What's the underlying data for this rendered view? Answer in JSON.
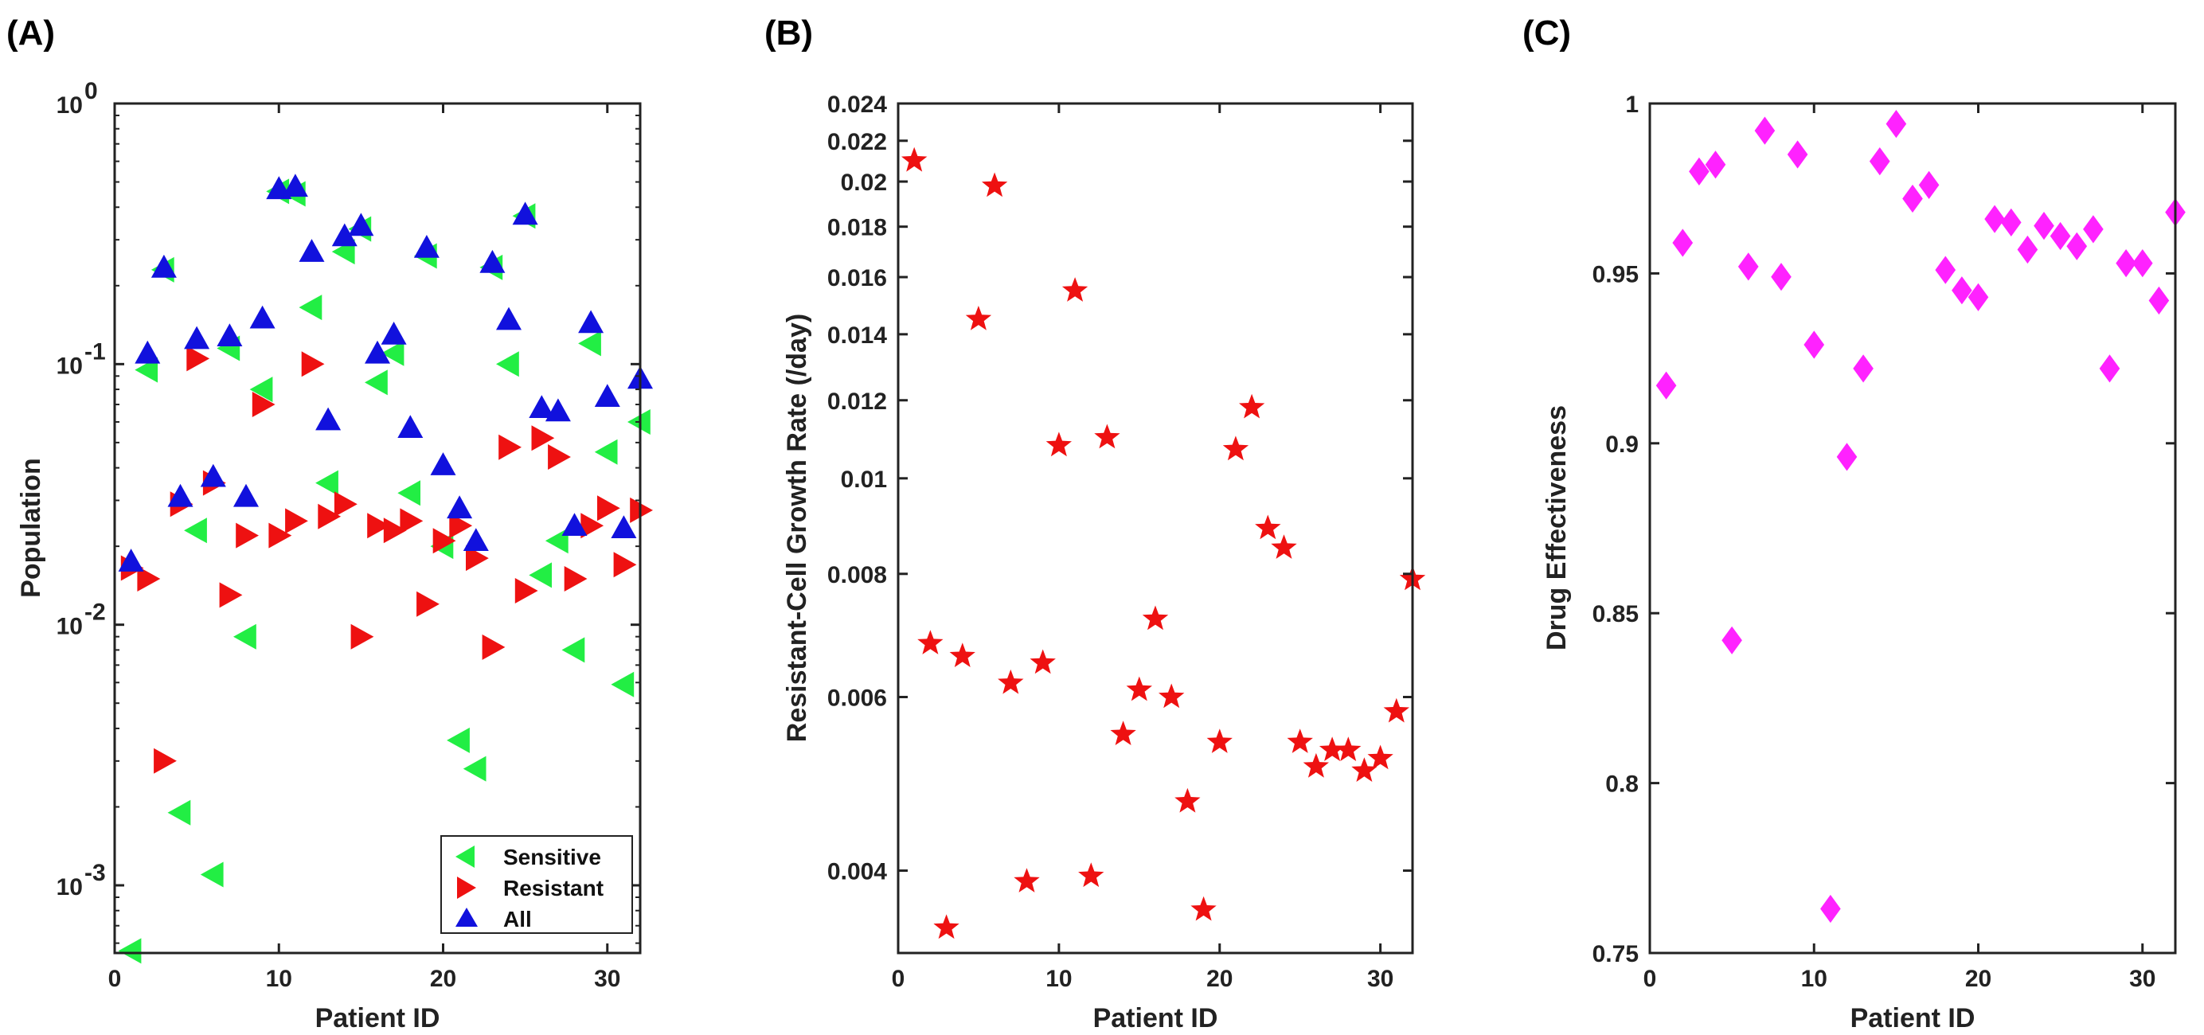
{
  "chart_data": [
    {
      "panel": "(A)",
      "type": "scatter",
      "yscale": "log",
      "xlabel": "Patient ID",
      "ylabel": "Population",
      "xlim": [
        0,
        32
      ],
      "ylim": [
        0.00055,
        1
      ],
      "xticks": [
        0,
        10,
        20,
        30
      ],
      "yticks": [
        {
          "value": 0.001,
          "base": "10",
          "exp": "-3"
        },
        {
          "value": 0.01,
          "base": "10",
          "exp": "-2"
        },
        {
          "value": 0.1,
          "base": "10",
          "exp": "-1"
        },
        {
          "value": 1,
          "base": "10",
          "exp": "0"
        }
      ],
      "legend_position": "bottom-right",
      "series": [
        {
          "name": "Sensitive",
          "marker": "triangle-left",
          "color": "#22ee44",
          "x": [
            1,
            2,
            3,
            4,
            5,
            6,
            7,
            8,
            9,
            10,
            11,
            12,
            13,
            14,
            15,
            16,
            17,
            18,
            19,
            20,
            21,
            22,
            23,
            24,
            25,
            26,
            27,
            28,
            29,
            30,
            31,
            32
          ],
          "y": [
            0.00056,
            0.095,
            0.23,
            0.0019,
            0.023,
            0.0011,
            0.115,
            0.009,
            0.08,
            0.46,
            0.45,
            0.165,
            0.035,
            0.27,
            0.33,
            0.085,
            0.11,
            0.032,
            0.26,
            0.02,
            0.0036,
            0.0028,
            0.235,
            0.1,
            0.37,
            0.0155,
            0.021,
            0.008,
            0.12,
            0.046,
            0.0059,
            0.06
          ]
        },
        {
          "name": "Resistant",
          "marker": "triangle-right",
          "color": "#ee1111",
          "x": [
            1,
            2,
            3,
            4,
            5,
            6,
            7,
            8,
            9,
            10,
            11,
            12,
            13,
            14,
            15,
            16,
            17,
            18,
            19,
            20,
            21,
            22,
            23,
            24,
            25,
            26,
            27,
            28,
            29,
            30,
            31,
            32
          ],
          "y": [
            0.0165,
            0.015,
            0.003,
            0.029,
            0.105,
            0.035,
            0.013,
            0.022,
            0.07,
            0.022,
            0.025,
            0.1,
            0.026,
            0.029,
            0.009,
            0.024,
            0.023,
            0.025,
            0.012,
            0.021,
            0.024,
            0.018,
            0.0082,
            0.048,
            0.0135,
            0.052,
            0.044,
            0.015,
            0.024,
            0.028,
            0.017,
            0.0275
          ]
        },
        {
          "name": "All",
          "marker": "triangle-up",
          "color": "#1111dd",
          "x": [
            1,
            2,
            3,
            4,
            5,
            6,
            7,
            8,
            9,
            10,
            11,
            12,
            13,
            14,
            15,
            16,
            17,
            18,
            19,
            20,
            21,
            22,
            23,
            24,
            25,
            26,
            27,
            28,
            29,
            30,
            31,
            32
          ],
          "y": [
            0.0175,
            0.11,
            0.235,
            0.031,
            0.125,
            0.037,
            0.128,
            0.031,
            0.15,
            0.47,
            0.48,
            0.27,
            0.061,
            0.31,
            0.34,
            0.11,
            0.13,
            0.057,
            0.28,
            0.041,
            0.028,
            0.021,
            0.245,
            0.148,
            0.375,
            0.068,
            0.066,
            0.024,
            0.144,
            0.075,
            0.0235,
            0.088
          ]
        }
      ]
    },
    {
      "panel": "(B)",
      "type": "scatter",
      "yscale": "log",
      "xlabel": "Patient ID",
      "ylabel": "Resistant-Cell Growth Rate (/day)",
      "xlim": [
        0,
        32
      ],
      "ylim": [
        0.0033,
        0.024
      ],
      "xticks": [
        0,
        10,
        20,
        30
      ],
      "yticks": [
        {
          "value": 0.004,
          "label": "0.004"
        },
        {
          "value": 0.006,
          "label": "0.006"
        },
        {
          "value": 0.008,
          "label": "0.008"
        },
        {
          "value": 0.01,
          "label": "0.01"
        },
        {
          "value": 0.012,
          "label": "0.012"
        },
        {
          "value": 0.014,
          "label": "0.014"
        },
        {
          "value": 0.016,
          "label": "0.016"
        },
        {
          "value": 0.018,
          "label": "0.018"
        },
        {
          "value": 0.02,
          "label": "0.02"
        },
        {
          "value": 0.022,
          "label": "0.022"
        },
        {
          "value": 0.024,
          "label": "0.024"
        }
      ],
      "series": [
        {
          "name": "Resistant-cell growth rate",
          "marker": "star",
          "color": "#ee1111",
          "x": [
            1,
            2,
            3,
            4,
            5,
            6,
            7,
            8,
            9,
            10,
            11,
            12,
            13,
            14,
            15,
            16,
            17,
            18,
            19,
            20,
            21,
            22,
            23,
            24,
            25,
            26,
            27,
            28,
            29,
            30,
            31,
            32
          ],
          "y": [
            0.021,
            0.0068,
            0.0035,
            0.0066,
            0.0145,
            0.0198,
            0.0062,
            0.0039,
            0.0065,
            0.0108,
            0.0155,
            0.00395,
            0.011,
            0.0055,
            0.0061,
            0.0072,
            0.006,
            0.0047,
            0.00365,
            0.0054,
            0.0107,
            0.0118,
            0.0089,
            0.0085,
            0.0054,
            0.0051,
            0.0053,
            0.0053,
            0.00505,
            0.0052,
            0.0058,
            0.0079
          ]
        }
      ]
    },
    {
      "panel": "(C)",
      "type": "scatter",
      "yscale": "linear",
      "xlabel": "Patient ID",
      "ylabel": "Drug Effectiveness",
      "xlim": [
        0,
        32
      ],
      "ylim": [
        0.75,
        1
      ],
      "xticks": [
        0,
        10,
        20,
        30
      ],
      "yticks": [
        {
          "value": 0.75,
          "label": "0.75"
        },
        {
          "value": 0.8,
          "label": "0.8"
        },
        {
          "value": 0.85,
          "label": "0.85"
        },
        {
          "value": 0.9,
          "label": "0.9"
        },
        {
          "value": 0.95,
          "label": "0.95"
        },
        {
          "value": 1,
          "label": "1"
        }
      ],
      "series": [
        {
          "name": "Drug effectiveness",
          "marker": "diamond",
          "color": "#ff22ff",
          "x": [
            1,
            2,
            3,
            4,
            5,
            6,
            7,
            8,
            9,
            10,
            11,
            12,
            13,
            14,
            15,
            16,
            17,
            18,
            19,
            20,
            21,
            22,
            23,
            24,
            25,
            26,
            27,
            28,
            29,
            30,
            31,
            32
          ],
          "y": [
            0.917,
            0.959,
            0.98,
            0.982,
            0.842,
            0.952,
            0.992,
            0.949,
            0.985,
            0.929,
            0.763,
            0.896,
            0.922,
            0.983,
            0.994,
            0.972,
            0.976,
            0.951,
            0.945,
            0.943,
            0.966,
            0.965,
            0.957,
            0.964,
            0.961,
            0.958,
            0.963,
            0.922,
            0.953,
            0.953,
            0.942,
            0.968
          ]
        }
      ]
    }
  ]
}
